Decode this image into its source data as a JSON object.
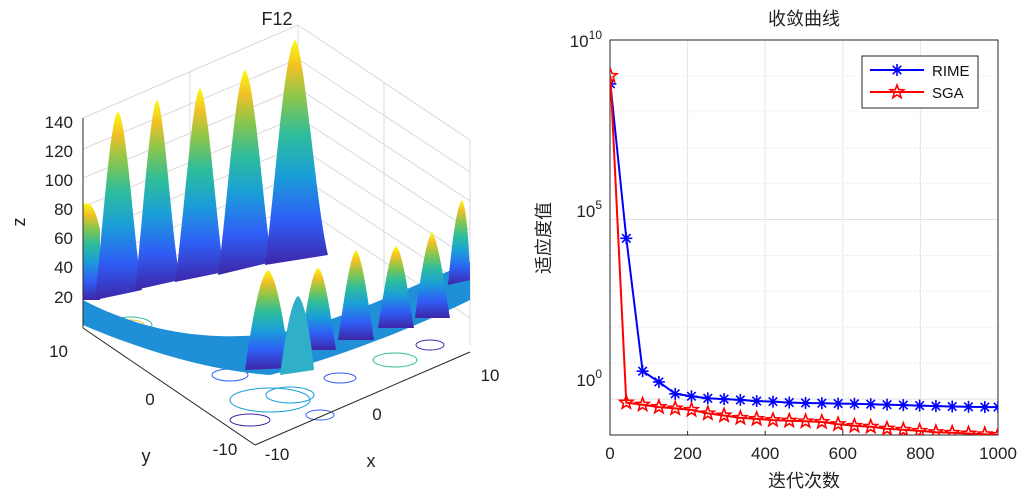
{
  "chart_data": [
    {
      "type": "surface3d",
      "title": "F12",
      "xlabel": "x",
      "ylabel": "y",
      "zlabel": "z",
      "xlim": [
        -10,
        10
      ],
      "ylim": [
        -10,
        10
      ],
      "zlim": [
        0,
        150
      ],
      "x_ticks": [
        "-10",
        "0",
        "10"
      ],
      "y_ticks": [
        "-10",
        "0",
        "10"
      ],
      "z_ticks": [
        "20",
        "40",
        "60",
        "80",
        "100",
        "120",
        "140"
      ],
      "colormap": [
        "#3e26a8",
        "#2f5ef6",
        "#1a9fd8",
        "#2ebd9a",
        "#8dc64a",
        "#f0c026",
        "#f9fb0e"
      ],
      "grid": true,
      "contours_on_floor": true
    },
    {
      "type": "line",
      "title": "收敛曲线",
      "xlabel": "迭代次数",
      "ylabel": "适应度值",
      "yscale": "log",
      "xlim": [
        0,
        1000
      ],
      "ylim": [
        0.1,
        10000000000
      ],
      "x_ticks": [
        "0",
        "200",
        "400",
        "600",
        "800",
        "1000"
      ],
      "y_ticks": [
        {
          "base": "10",
          "exp": "0"
        },
        {
          "base": "10",
          "exp": "5"
        },
        {
          "base": "10",
          "exp": "10"
        }
      ],
      "grid": true,
      "legend_position": "top-right",
      "series": [
        {
          "name": "RIME",
          "color": "#0000ff",
          "marker": "asterisk",
          "x": [
            1,
            42,
            84,
            126,
            168,
            210,
            252,
            294,
            336,
            378,
            420,
            462,
            504,
            546,
            588,
            630,
            672,
            714,
            756,
            798,
            840,
            882,
            924,
            966,
            1000
          ],
          "y": [
            600000000,
            30000,
            6,
            3,
            1.4,
            1.2,
            1.05,
            1.0,
            0.95,
            0.88,
            0.85,
            0.8,
            0.78,
            0.77,
            0.75,
            0.74,
            0.72,
            0.7,
            0.68,
            0.66,
            0.64,
            0.62,
            0.61,
            0.6,
            0.6
          ]
        },
        {
          "name": "SGA",
          "color": "#ff0000",
          "marker": "star",
          "x": [
            1,
            42,
            84,
            126,
            168,
            210,
            252,
            294,
            336,
            378,
            420,
            462,
            504,
            546,
            588,
            630,
            672,
            714,
            756,
            798,
            840,
            882,
            924,
            966,
            1000
          ],
          "y": [
            1000000000,
            0.8,
            0.7,
            0.6,
            0.55,
            0.5,
            0.4,
            0.35,
            0.3,
            0.28,
            0.26,
            0.25,
            0.24,
            0.23,
            0.2,
            0.18,
            0.17,
            0.15,
            0.14,
            0.13,
            0.12,
            0.115,
            0.11,
            0.105,
            0.1
          ]
        }
      ]
    }
  ]
}
